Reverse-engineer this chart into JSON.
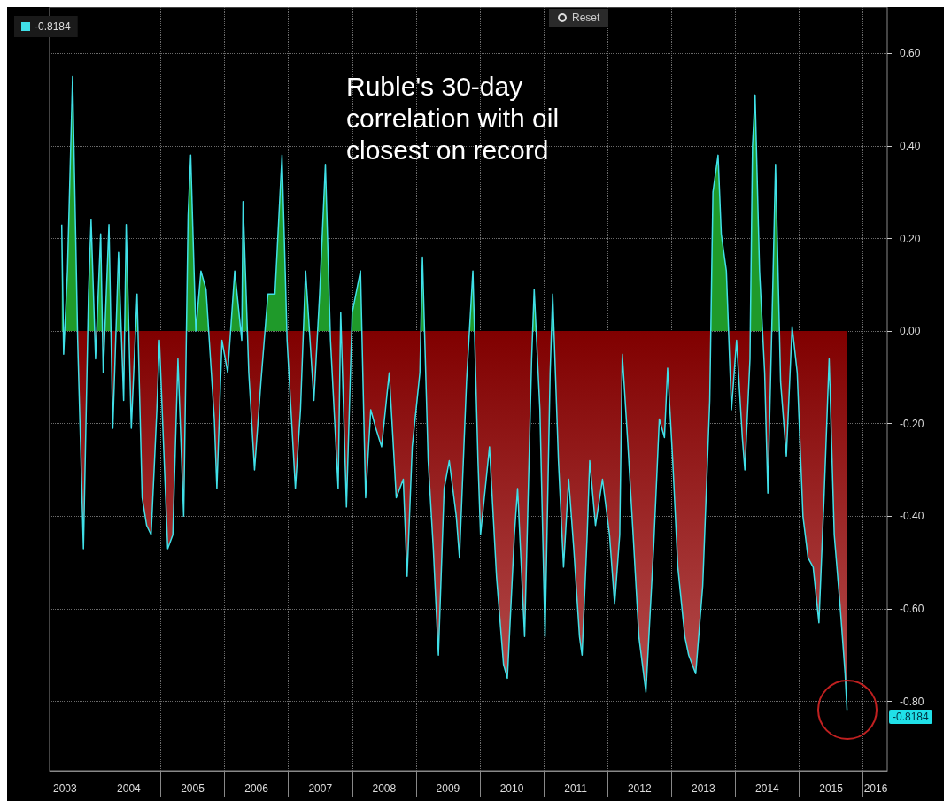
{
  "chart_data": {
    "type": "area",
    "title": "Ruble's 30-day correlation with oil closest on record",
    "xlim": [
      2003.26,
      2016.38
    ],
    "ylim": [
      -0.95,
      0.7
    ],
    "xticks": [
      {
        "value": 2003.5,
        "label": "2003"
      },
      {
        "value": 2004,
        "label": null
      },
      {
        "value": 2004.5,
        "label": "2004"
      },
      {
        "value": 2005,
        "label": null
      },
      {
        "value": 2005.5,
        "label": "2005"
      },
      {
        "value": 2006,
        "label": null
      },
      {
        "value": 2006.5,
        "label": "2006"
      },
      {
        "value": 2007,
        "label": null
      },
      {
        "value": 2007.5,
        "label": "2007"
      },
      {
        "value": 2008,
        "label": null
      },
      {
        "value": 2008.5,
        "label": "2008"
      },
      {
        "value": 2009,
        "label": null
      },
      {
        "value": 2009.5,
        "label": "2009"
      },
      {
        "value": 2010,
        "label": null
      },
      {
        "value": 2010.5,
        "label": "2010"
      },
      {
        "value": 2011,
        "label": null
      },
      {
        "value": 2011.5,
        "label": "2011"
      },
      {
        "value": 2012,
        "label": null
      },
      {
        "value": 2012.5,
        "label": "2012"
      },
      {
        "value": 2013,
        "label": null
      },
      {
        "value": 2013.5,
        "label": "2013"
      },
      {
        "value": 2014,
        "label": null
      },
      {
        "value": 2014.5,
        "label": "2014"
      },
      {
        "value": 2015,
        "label": null
      },
      {
        "value": 2015.5,
        "label": "2015"
      },
      {
        "value": 2016,
        "label": null
      },
      {
        "value": 2016.2,
        "label": "2016"
      }
    ],
    "yticks": [
      {
        "value": 0.6,
        "label": "0.60"
      },
      {
        "value": 0.4,
        "label": "0.40"
      },
      {
        "value": 0.2,
        "label": "0.20"
      },
      {
        "value": 0,
        "label": "0.00"
      },
      {
        "value": -0.2,
        "label": "-0.20"
      },
      {
        "value": -0.4,
        "label": "-0.40"
      },
      {
        "value": -0.6,
        "label": "-0.60"
      },
      {
        "value": -0.8,
        "label": "-0.80"
      }
    ],
    "grid": true,
    "legend": "top left",
    "marker": "none",
    "annotations": [
      "Reset",
      "-0.8184"
    ],
    "series": [
      {
        "name": "-0.8184",
        "color": "#40e0e8",
        "x": [
          2003.45,
          2003.48,
          2003.54,
          2003.62,
          2003.7,
          2003.79,
          2003.87,
          2003.91,
          2003.98,
          2004.06,
          2004.1,
          2004.19,
          2004.25,
          2004.34,
          2004.42,
          2004.46,
          2004.54,
          2004.63,
          2004.71,
          2004.78,
          2004.85,
          2004.94,
          2004.98,
          2005.11,
          2005.19,
          2005.27,
          2005.36,
          2005.43,
          2005.47,
          2005.55,
          2005.63,
          2005.71,
          2005.84,
          2005.88,
          2005.96,
          2006.05,
          2006.16,
          2006.27,
          2006.29,
          2006.38,
          2006.47,
          2006.57,
          2006.68,
          2006.79,
          2006.9,
          2006.98,
          2007.11,
          2007.19,
          2007.27,
          2007.4,
          2007.49,
          2007.58,
          2007.66,
          2007.78,
          2007.82,
          2007.91,
          2008.0,
          2008.13,
          2008.21,
          2008.29,
          2008.37,
          2008.46,
          2008.58,
          2008.69,
          2008.8,
          2008.86,
          2008.94,
          2009.06,
          2009.1,
          2009.19,
          2009.27,
          2009.35,
          2009.44,
          2009.52,
          2009.63,
          2009.68,
          2009.79,
          2009.89,
          2009.97,
          2010.01,
          2010.15,
          2010.26,
          2010.37,
          2010.43,
          2010.54,
          2010.59,
          2010.7,
          2010.81,
          2010.85,
          2010.94,
          2011.02,
          2011.1,
          2011.14,
          2011.23,
          2011.31,
          2011.39,
          2011.47,
          2011.56,
          2011.6,
          2011.68,
          2011.72,
          2011.81,
          2011.92,
          2012.03,
          2012.11,
          2012.19,
          2012.23,
          2012.32,
          2012.4,
          2012.49,
          2012.6,
          2012.72,
          2012.81,
          2012.89,
          2012.94,
          2013.02,
          2013.1,
          2013.21,
          2013.27,
          2013.38,
          2013.49,
          2013.6,
          2013.65,
          2013.73,
          2013.78,
          2013.86,
          2013.94,
          2014.02,
          2014.11,
          2014.15,
          2014.23,
          2014.27,
          2014.31,
          2014.38,
          2014.46,
          2014.51,
          2014.59,
          2014.63,
          2014.71,
          2014.8,
          2014.89,
          2014.97,
          2015.06,
          2015.14,
          2015.22,
          2015.31,
          2015.39,
          2015.47,
          2015.55,
          2015.64,
          2015.72,
          2015.75
        ],
        "values": [
          0.23,
          -0.05,
          0.13,
          0.55,
          -0.02,
          -0.47,
          0.08,
          0.24,
          -0.06,
          0.21,
          -0.09,
          0.23,
          -0.21,
          0.17,
          -0.15,
          0.23,
          -0.21,
          0.08,
          -0.36,
          -0.42,
          -0.44,
          -0.17,
          -0.02,
          -0.47,
          -0.44,
          -0.06,
          -0.4,
          0.25,
          0.38,
          0.0,
          0.13,
          0.09,
          -0.19,
          -0.34,
          -0.02,
          -0.09,
          0.13,
          -0.02,
          0.28,
          -0.09,
          -0.3,
          -0.11,
          0.08,
          0.08,
          0.38,
          -0.02,
          -0.34,
          -0.17,
          0.13,
          -0.15,
          0.08,
          0.36,
          -0.02,
          -0.34,
          0.04,
          -0.38,
          0.04,
          0.13,
          -0.36,
          -0.17,
          -0.21,
          -0.25,
          -0.09,
          -0.36,
          -0.32,
          -0.53,
          -0.25,
          -0.09,
          0.16,
          -0.28,
          -0.47,
          -0.7,
          -0.34,
          -0.28,
          -0.4,
          -0.49,
          -0.11,
          0.13,
          -0.28,
          -0.44,
          -0.25,
          -0.53,
          -0.72,
          -0.75,
          -0.44,
          -0.34,
          -0.66,
          -0.06,
          0.09,
          -0.17,
          -0.66,
          -0.09,
          0.08,
          -0.28,
          -0.51,
          -0.32,
          -0.47,
          -0.66,
          -0.7,
          -0.44,
          -0.28,
          -0.42,
          -0.32,
          -0.44,
          -0.59,
          -0.44,
          -0.05,
          -0.25,
          -0.44,
          -0.66,
          -0.78,
          -0.47,
          -0.19,
          -0.23,
          -0.08,
          -0.28,
          -0.51,
          -0.66,
          -0.7,
          -0.74,
          -0.55,
          -0.15,
          0.3,
          0.38,
          0.21,
          0.13,
          -0.17,
          -0.02,
          -0.23,
          -0.3,
          -0.06,
          0.4,
          0.51,
          0.13,
          -0.09,
          -0.35,
          0.11,
          0.36,
          -0.11,
          -0.27,
          0.01,
          -0.09,
          -0.4,
          -0.49,
          -0.51,
          -0.63,
          -0.36,
          -0.06,
          -0.44,
          -0.59,
          -0.74,
          -0.8184
        ]
      }
    ]
  }
}
